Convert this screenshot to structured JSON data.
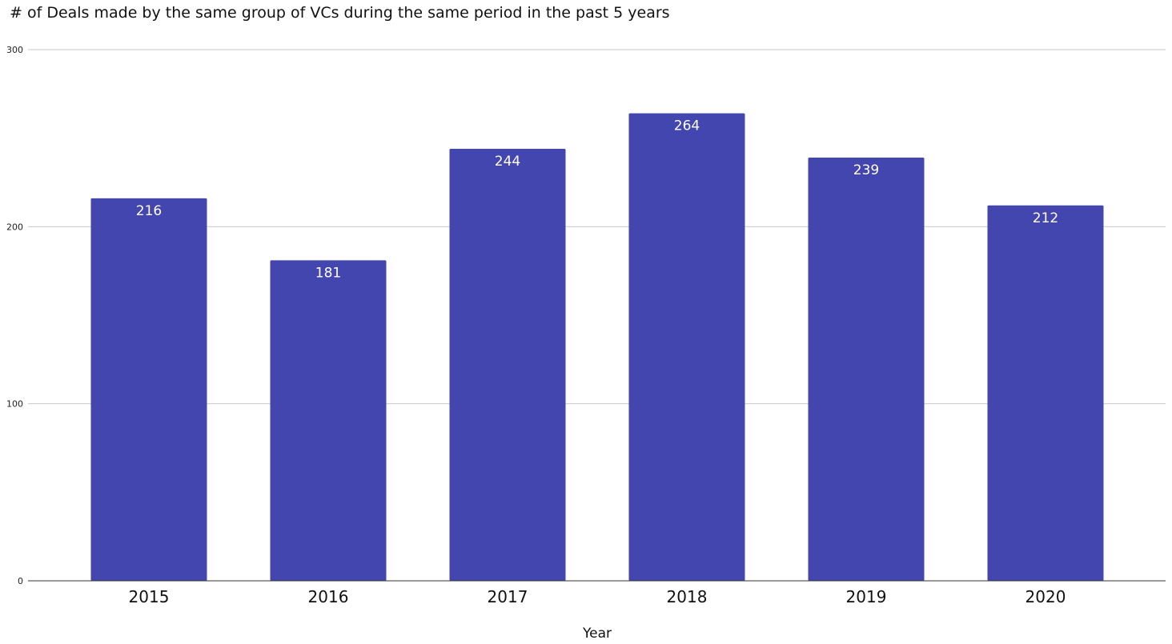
{
  "chart_data": {
    "type": "bar",
    "title": "# of Deals made by the same group of VCs during the same period in the past 5 years",
    "xlabel": "Year",
    "ylabel": "",
    "categories": [
      "2015",
      "2016",
      "2017",
      "2018",
      "2019",
      "2020"
    ],
    "values": [
      216,
      181,
      244,
      264,
      239,
      212
    ],
    "ylim": [
      0,
      300
    ],
    "yticks": [
      0,
      100,
      200,
      300
    ],
    "grid": true,
    "legend": "none",
    "data_labels": true,
    "colors": {
      "bar": "#4446b0",
      "grid": "#c8c8c8",
      "axis": "#333333",
      "label": "#ffffff"
    }
  }
}
